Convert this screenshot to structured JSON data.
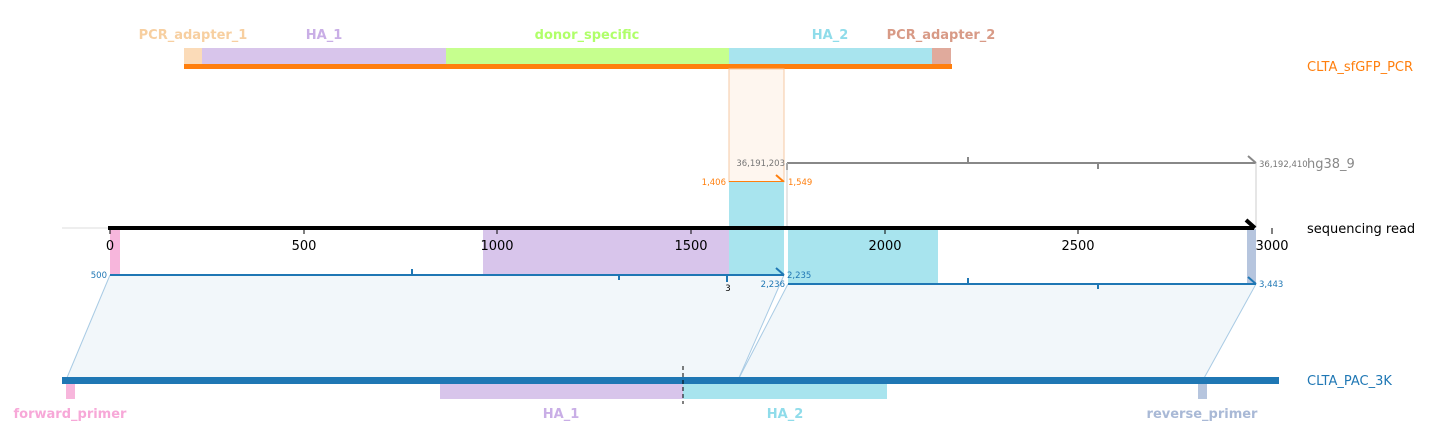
{
  "colors": {
    "pcr_adapter_1": "#fbdbb8",
    "ha_1": "#d8c5eb",
    "donor_specific": "#c6ff8e",
    "ha_2": "#a8e4ee",
    "pcr_adapter_2": "#e0aa9c",
    "orange_line": "#ff7f0e",
    "blue_line": "#1f77b4",
    "gray_line": "#888888",
    "forward_primer": "#f7b6dc",
    "reverse_primer": "#b6c5de"
  },
  "tracks": {
    "top": {
      "label": "CLTA_sfGFP_PCR",
      "color": "#ff7f0e"
    },
    "ref": {
      "label": "hg38_9",
      "color": "#888888"
    },
    "read": {
      "label": "sequencing read",
      "color": "#000000"
    },
    "bottom": {
      "label": "CLTA_PAC_3K",
      "color": "#1f77b4"
    }
  },
  "top_features": [
    {
      "name": "PCR_adapter_1",
      "color": "#f7cfa0"
    },
    {
      "name": "HA_1",
      "color": "#c9aee6"
    },
    {
      "name": "donor_specific",
      "color": "#b0ff6a"
    },
    {
      "name": "HA_2",
      "color": "#8fdcea"
    },
    {
      "name": "PCR_adapter_2",
      "color": "#d89a86"
    }
  ],
  "bottom_features": [
    {
      "name": "forward_primer",
      "color": "#f7a8d8"
    },
    {
      "name": "HA_1",
      "color": "#c9aee6"
    },
    {
      "name": "HA_2",
      "color": "#8fdcea"
    },
    {
      "name": "reverse_primer",
      "color": "#a9b9d6"
    }
  ],
  "read_axis": {
    "ticks": [
      "0",
      "500",
      "1000",
      "1500",
      "2000",
      "2500",
      "3000"
    ]
  },
  "coords": {
    "orange_start": "1,406",
    "orange_end": "1,549",
    "ref_start": "36,191,203",
    "ref_end": "36,192,410",
    "blue1_start": "500",
    "blue1_end": "2,235",
    "blue2_start": "2,236",
    "blue2_end": "3,443",
    "cut_label": "3"
  }
}
